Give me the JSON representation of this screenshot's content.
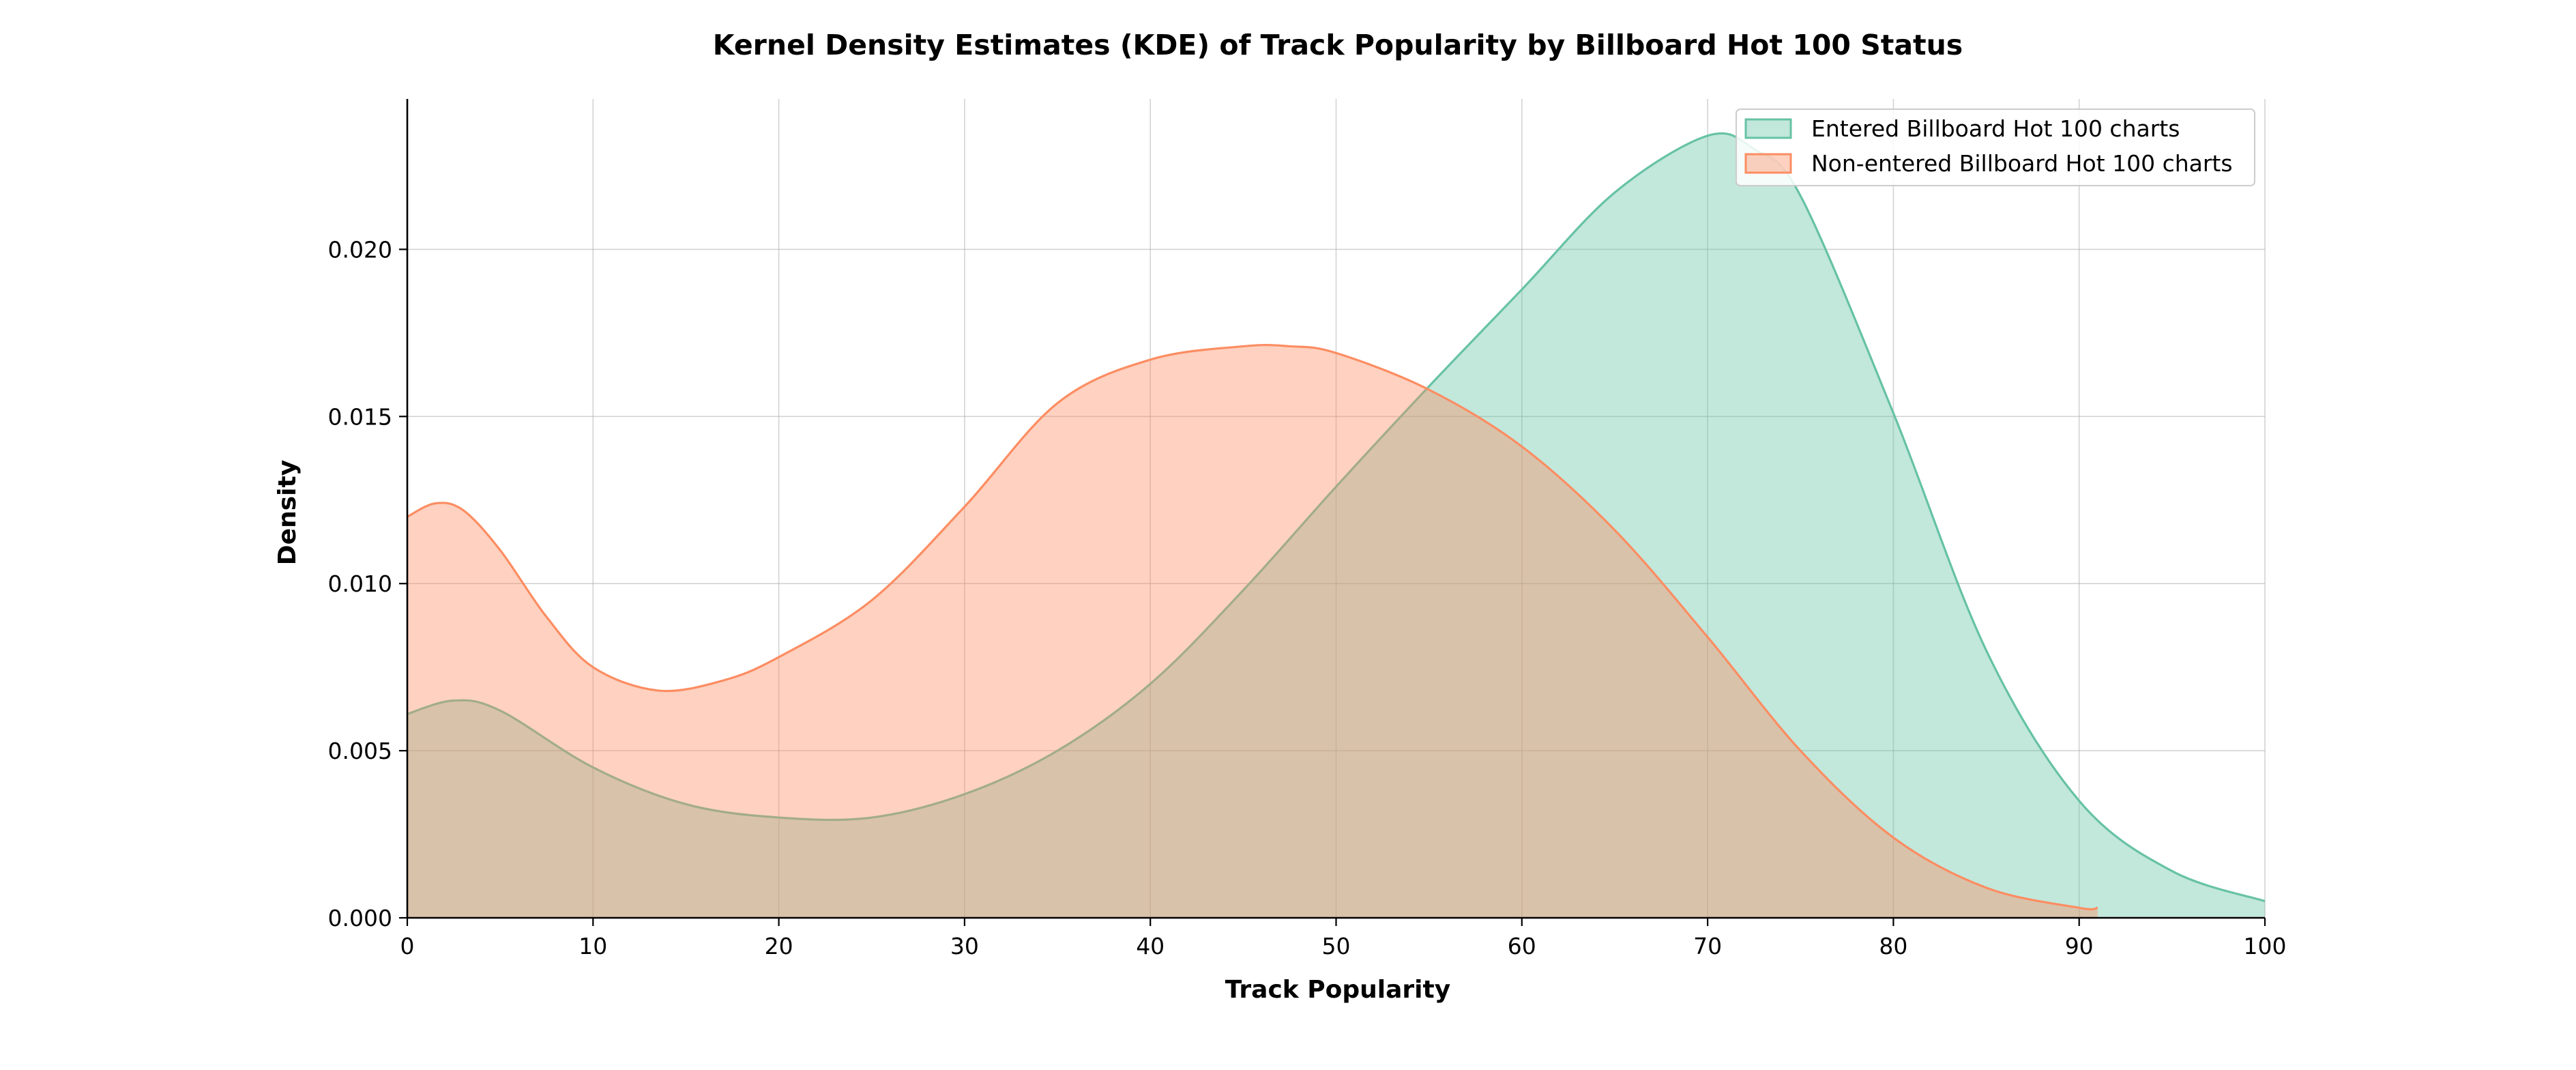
{
  "chart_data": {
    "type": "area",
    "title": "Kernel Density Estimates (KDE) of Track Popularity by Billboard Hot 100 Status",
    "xlabel": "Track Popularity",
    "ylabel": "Density",
    "xlim": [
      0,
      100
    ],
    "ylim": [
      0,
      0.0245
    ],
    "xticks": [
      0,
      10,
      20,
      30,
      40,
      50,
      60,
      70,
      80,
      90,
      100
    ],
    "xtick_labels": [
      "0",
      "10",
      "20",
      "30",
      "40",
      "50",
      "60",
      "70",
      "80",
      "90",
      "100"
    ],
    "yticks": [
      0,
      0.005,
      0.01,
      0.015,
      0.02
    ],
    "ytick_labels": [
      "0.000",
      "0.005",
      "0.010",
      "0.015",
      "0.020"
    ],
    "grid": true,
    "legend_position": "top-right",
    "series": [
      {
        "name": "Entered Billboard Hot 100 charts",
        "color": "#66c2a5",
        "x": [
          0,
          2.5,
          5,
          10,
          15,
          20,
          25,
          30,
          35,
          40,
          45,
          50,
          55,
          60,
          65,
          70,
          72.5,
          75,
          80,
          85,
          90,
          95,
          100
        ],
        "y": [
          0.0061,
          0.0065,
          0.0062,
          0.0045,
          0.0034,
          0.003,
          0.003,
          0.0037,
          0.005,
          0.007,
          0.0098,
          0.0129,
          0.0159,
          0.0188,
          0.0217,
          0.0234,
          0.023,
          0.0216,
          0.0151,
          0.008,
          0.0035,
          0.0014,
          0.0005
        ]
      },
      {
        "name": "Non-entered Billboard Hot 100 charts",
        "color": "#fc8d62",
        "x": [
          0,
          1.5,
          3,
          5,
          7.5,
          10,
          13.5,
          17,
          20,
          25,
          30,
          35,
          40,
          45,
          47.5,
          50,
          55,
          60,
          65,
          70,
          75,
          80,
          85,
          90,
          91
        ],
        "y": [
          0.012,
          0.0124,
          0.0122,
          0.011,
          0.009,
          0.0075,
          0.0068,
          0.0071,
          0.0078,
          0.0095,
          0.0123,
          0.0154,
          0.0167,
          0.0171,
          0.0171,
          0.0169,
          0.0158,
          0.0141,
          0.0116,
          0.0084,
          0.005,
          0.0024,
          0.0009,
          0.0003,
          0.0003
        ]
      }
    ]
  }
}
